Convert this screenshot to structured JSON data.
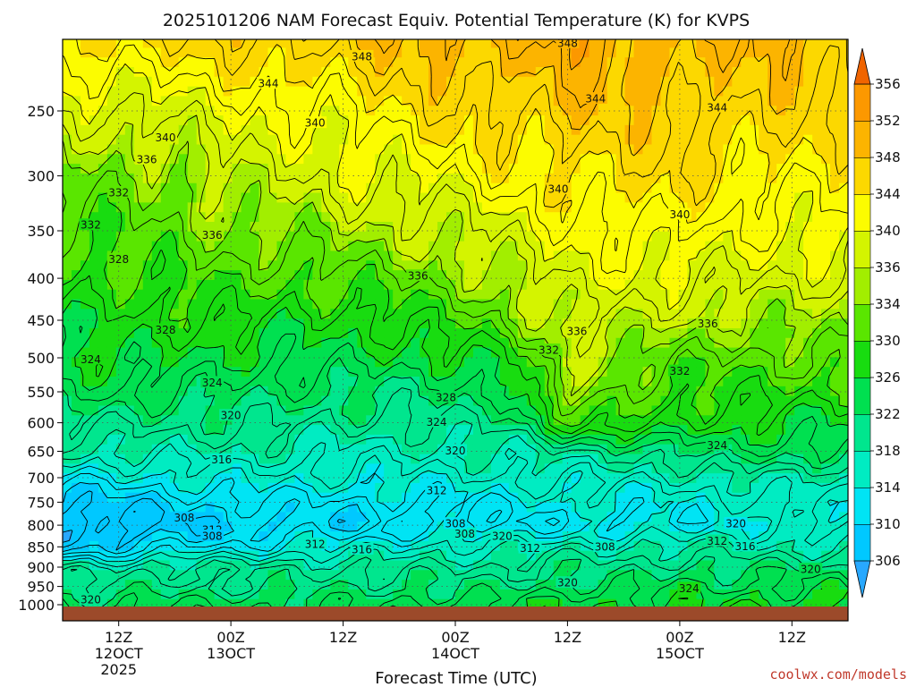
{
  "chart_data": {
    "type": "heatmap",
    "title": "2025101206 NAM Forecast Equiv. Potential Temperature (K) for KVPS",
    "xlabel": "Forecast Time (UTC)",
    "ylabel": "",
    "y_scale": "log-pressure",
    "y_ticks": [
      250,
      300,
      350,
      400,
      450,
      500,
      550,
      600,
      650,
      700,
      750,
      800,
      850,
      900,
      950,
      1000
    ],
    "ylim": [
      1000,
      200
    ],
    "x_ticks": [
      {
        "h": 6,
        "label": [
          "12Z",
          "12OCT",
          "2025"
        ]
      },
      {
        "h": 18,
        "label": [
          "00Z",
          "13OCT"
        ]
      },
      {
        "h": 30,
        "label": [
          "12Z"
        ]
      },
      {
        "h": 42,
        "label": [
          "00Z",
          "14OCT"
        ]
      },
      {
        "h": 54,
        "label": [
          "12Z"
        ]
      },
      {
        "h": 66,
        "label": [
          "00Z",
          "15OCT"
        ]
      },
      {
        "h": 78,
        "label": [
          "12Z"
        ]
      }
    ],
    "xlim": [
      0,
      84
    ],
    "grid": true,
    "colorbar": {
      "levels": [
        306,
        310,
        314,
        318,
        322,
        326,
        330,
        334,
        336,
        340,
        344,
        348,
        352,
        356
      ],
      "colors": [
        "#00c8ff",
        "#00e4f4",
        "#00ecc2",
        "#00e68e",
        "#00e050",
        "#18dc10",
        "#5ae600",
        "#a2ee00",
        "#d4f400",
        "#fcfc00",
        "#fcd800",
        "#fcb400",
        "#fc9800",
        "#f88000"
      ],
      "min_color": "#28a8ff",
      "max_color": "#f06400"
    },
    "contour_labels": [
      "348",
      "348",
      "344",
      "344",
      "344",
      "340",
      "340",
      "340",
      "340",
      "336",
      "336",
      "336",
      "336",
      "336",
      "332",
      "332",
      "332",
      "332",
      "328",
      "328",
      "328",
      "324",
      "324",
      "324",
      "324",
      "324",
      "320",
      "320",
      "320",
      "320",
      "320",
      "320",
      "320",
      "316",
      "316",
      "316",
      "312",
      "312",
      "312",
      "312",
      "312",
      "308",
      "308",
      "308",
      "308",
      "308"
    ],
    "profile": {
      "hours": [
        0,
        6,
        12,
        18,
        24,
        30,
        36,
        42,
        48,
        54,
        60,
        66,
        72,
        78,
        84
      ],
      "pressure": [
        1000,
        950,
        900,
        850,
        800,
        750,
        700,
        650,
        600,
        550,
        500,
        450,
        400,
        350,
        300,
        250,
        200
      ],
      "values": [
        [
          324,
          320,
          319,
          309,
          307,
          309,
          313,
          318,
          321,
          324,
          326,
          327,
          329,
          331,
          333,
          338,
          346
        ],
        [
          324,
          320,
          319,
          309,
          307,
          309,
          313,
          318,
          321,
          324,
          326,
          327,
          329,
          331,
          333,
          338,
          346
        ],
        [
          324,
          321,
          320,
          312,
          308,
          310,
          314,
          318,
          321,
          324,
          326,
          328,
          330,
          332,
          334,
          339,
          346
        ],
        [
          324,
          321,
          320,
          312,
          309,
          311,
          315,
          318,
          321,
          323,
          325,
          328,
          331,
          334,
          337,
          340,
          347
        ],
        [
          324,
          321,
          320,
          314,
          310,
          312,
          315,
          318,
          320,
          323,
          325,
          327,
          330,
          334,
          337,
          341,
          348
        ],
        [
          324,
          321,
          320,
          314,
          310,
          312,
          315,
          317,
          320,
          322,
          325,
          327,
          331,
          335,
          339,
          342,
          348
        ],
        [
          324,
          322,
          320,
          316,
          311,
          312,
          315,
          317,
          320,
          322,
          325,
          328,
          332,
          336,
          340,
          344,
          349
        ],
        [
          325,
          322,
          320,
          317,
          311,
          313,
          315,
          318,
          320,
          323,
          326,
          330,
          334,
          337,
          341,
          345,
          350
        ],
        [
          325,
          322,
          320,
          317,
          311,
          313,
          316,
          318,
          321,
          324,
          328,
          333,
          336,
          339,
          343,
          346,
          350
        ],
        [
          326,
          323,
          321,
          318,
          312,
          314,
          316,
          320,
          329,
          336,
          336,
          337,
          339,
          341,
          344,
          348,
          351
        ],
        [
          326,
          323,
          321,
          318,
          312,
          314,
          316,
          320,
          330,
          332,
          334,
          337,
          340,
          342,
          345,
          347,
          350
        ],
        [
          326,
          324,
          322,
          318,
          313,
          314,
          317,
          322,
          328,
          329,
          332,
          336,
          339,
          342,
          345,
          347,
          350
        ],
        [
          327,
          324,
          322,
          318,
          314,
          315,
          318,
          324,
          327,
          329,
          331,
          335,
          338,
          341,
          344,
          346,
          349
        ],
        [
          327,
          325,
          322,
          318,
          315,
          316,
          318,
          323,
          326,
          329,
          332,
          335,
          338,
          341,
          343,
          346,
          349
        ],
        [
          327,
          325,
          322,
          318,
          315,
          316,
          318,
          323,
          326,
          329,
          332,
          335,
          338,
          341,
          343,
          346,
          349
        ]
      ]
    }
  },
  "watermark": "coolwx.com/models"
}
